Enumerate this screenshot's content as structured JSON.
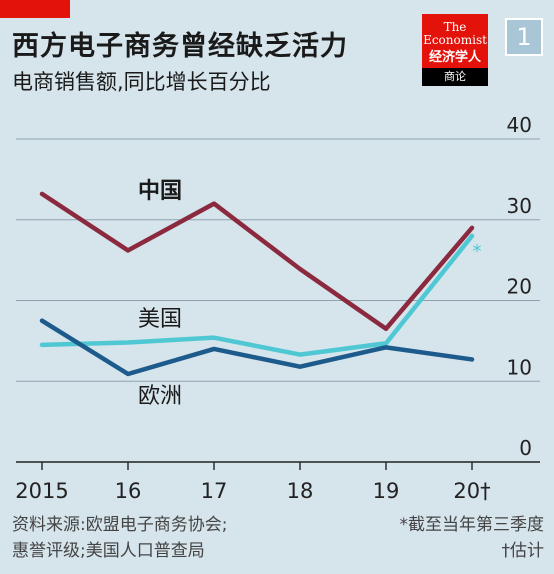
{
  "header": {
    "title": "西方电子商务曾经缺乏活力",
    "subtitle": "电商销售额,同比增长百分比",
    "badge": "1"
  },
  "logo": {
    "line1": "The Economist",
    "line2": "经济学人",
    "line3": "商论"
  },
  "footer": {
    "source_line1": "资料来源:欧盟电子商务协会;",
    "source_line2": "惠誉评级;美国人口普查局",
    "note1": "*截至当年第三季度",
    "note2": "†估计"
  },
  "chart_data": {
    "type": "line",
    "x": [
      2015,
      2016,
      2017,
      2018,
      2019,
      2020
    ],
    "x_tick_labels": [
      "2015",
      "16",
      "17",
      "18",
      "19",
      "20†"
    ],
    "ylim": [
      0,
      40
    ],
    "y_ticks": [
      0,
      10,
      20,
      30,
      40
    ],
    "grid": true,
    "series": [
      {
        "name": "中国",
        "color": "#8b2a3f",
        "values": [
          33.2,
          26.2,
          32.0,
          23.9,
          16.5,
          29.0
        ]
      },
      {
        "name": "美国",
        "color": "#4fc8d4",
        "values": [
          14.5,
          14.8,
          15.4,
          13.3,
          14.7,
          28.0
        ]
      },
      {
        "name": "欧洲",
        "color": "#1d5b8c",
        "values": [
          17.5,
          10.9,
          14.0,
          11.8,
          14.2,
          12.7
        ]
      }
    ],
    "annotations": [
      {
        "text": "*",
        "series": "美国",
        "x": 2020
      }
    ]
  }
}
